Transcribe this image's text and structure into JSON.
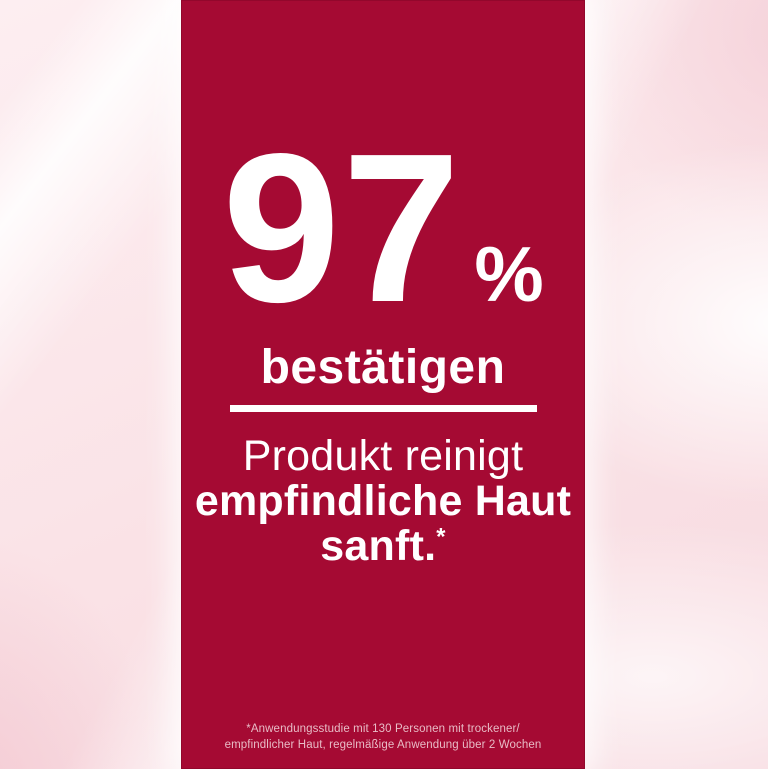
{
  "ad": {
    "stat": {
      "value": "97",
      "unit": "%",
      "caption": "bestätigen"
    },
    "claim": {
      "line1": "Produkt reinigt",
      "line2": "empfindliche Haut",
      "line3": "sanft.",
      "asterisk": "*"
    },
    "footnote": {
      "line1": "*Anwendungsstudie mit 130 Personen mit trockener/",
      "line2": "empfindlicher Haut, regelmäßige Anwendung über 2 Wochen"
    },
    "colors": {
      "panel_red": "#A50A33",
      "background_pink": "#FAE3E7",
      "text_white": "#FFFFFF",
      "footnote_pink": "#E8BCC6"
    }
  }
}
